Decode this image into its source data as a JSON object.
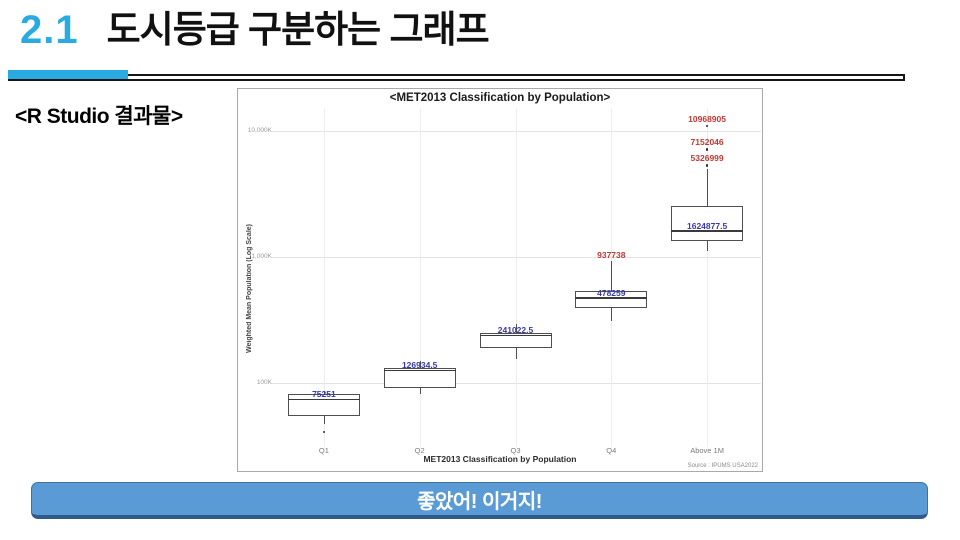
{
  "colors": {
    "accent": "#29ABE2",
    "banner_fill": "#5B9BD5",
    "banner_border": "#41719C",
    "banner_border_dark": "#2E5B8C",
    "median_blue": "#3838A8",
    "outlier_red": "#BE3A34"
  },
  "header": {
    "section_number": "2.1",
    "title": "도시등급 구분하는 그래프"
  },
  "r_output_label": "<R Studio 결과물>",
  "banner": {
    "text": "좋았어! 이거지!"
  },
  "chart_data": {
    "type": "boxplot",
    "title": "<MET2013 Classification by Population>",
    "xlabel": "MET2013 Classification by Population",
    "ylabel": "Weighted Mean Population (Log Scale)",
    "source": "Source : IPUMS USA2022",
    "y_scale": "log10",
    "y_ticks": [
      {
        "value": 10000000,
        "label": "10,000K"
      },
      {
        "value": 1000000,
        "label": "1,000K"
      },
      {
        "value": 100000,
        "label": "100K"
      }
    ],
    "categories": [
      "Q1",
      "Q2",
      "Q3",
      "Q4",
      "Above 1M"
    ],
    "boxes": [
      {
        "category": "Q1",
        "whisker_high": 86000,
        "q3": 82000,
        "median": 75251,
        "median_label": "75251",
        "q1": 55000,
        "whisker_low": 47000,
        "outliers": [
          {
            "value": 41000
          }
        ]
      },
      {
        "category": "Q2",
        "whisker_high": 150000,
        "q3": 132000,
        "median": 126934.5,
        "median_label": "126934.5",
        "q1": 91000,
        "whisker_low": 82000,
        "outliers": []
      },
      {
        "category": "Q3",
        "whisker_high": 294000,
        "q3": 250000,
        "median": 241022.5,
        "median_label": "241022.5",
        "q1": 190000,
        "whisker_low": 155000,
        "outliers": []
      },
      {
        "category": "Q4",
        "whisker_high": 937738,
        "whisker_high_label": "937738",
        "q3": 540000,
        "median": 478259,
        "median_label": "478259",
        "q1": 395000,
        "whisker_low": 310000,
        "outliers": []
      },
      {
        "category": "Above 1M",
        "whisker_high": 5000000,
        "q3": 2550000,
        "median": 1624877.5,
        "median_label": "1624877.5",
        "q1": 1340000,
        "whisker_low": 1120000,
        "outliers": [
          {
            "value": 10968905,
            "label": "10968905"
          },
          {
            "value": 7152046,
            "label": "7152046"
          },
          {
            "value": 5326999,
            "label": "5326999"
          }
        ]
      }
    ]
  }
}
